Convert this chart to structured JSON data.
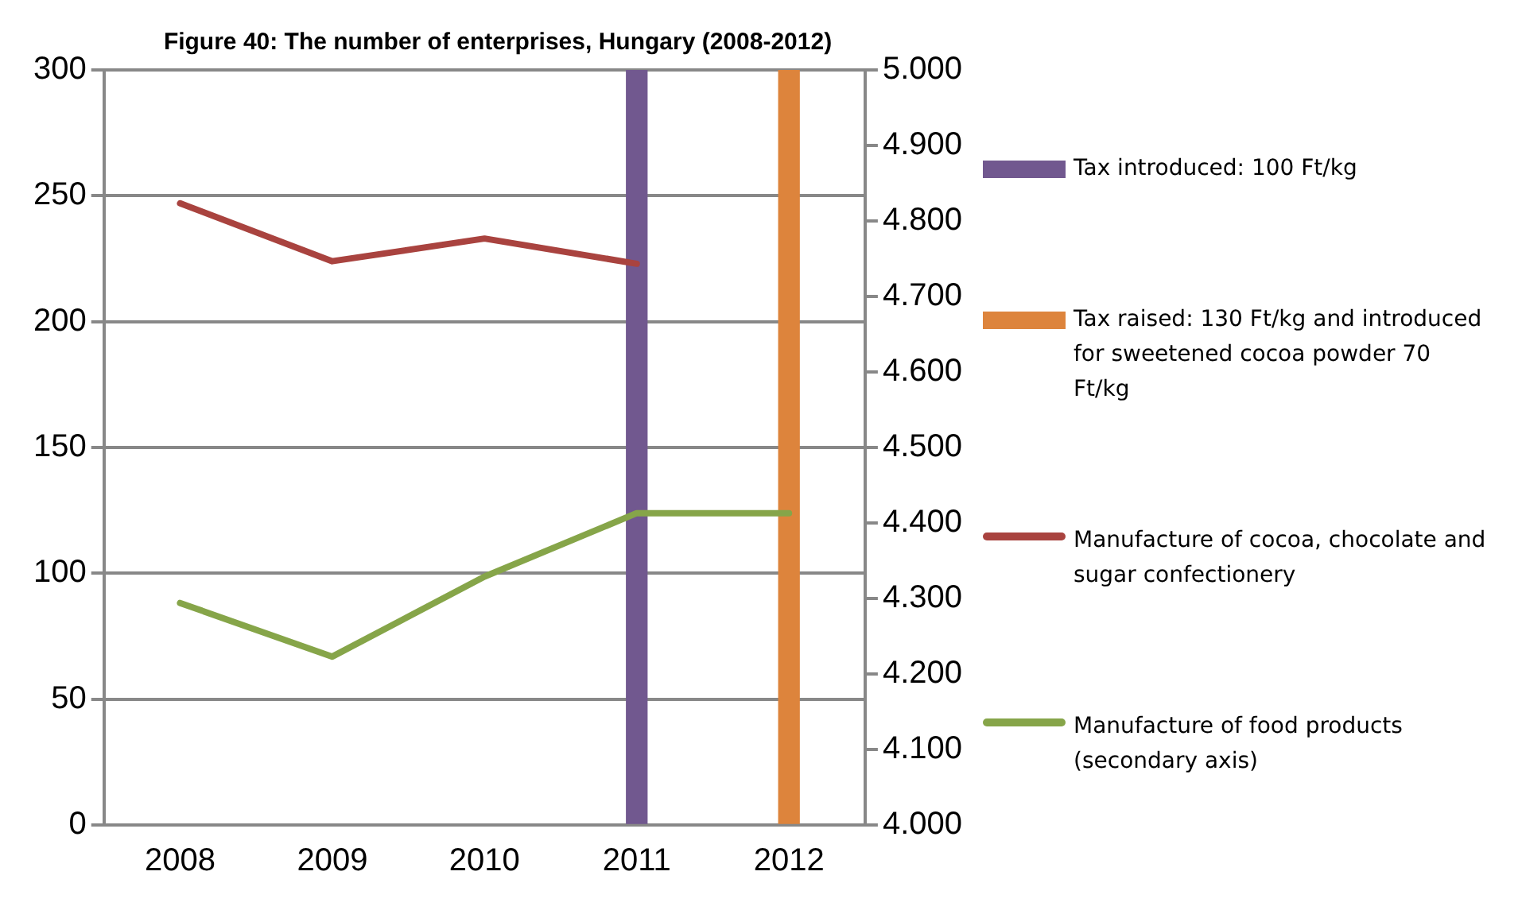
{
  "chart_data": {
    "type": "line",
    "title": "Figure 40: The number of enterprises, Hungary (2008-2012)",
    "categories": [
      "2008",
      "2009",
      "2010",
      "2011",
      "2012"
    ],
    "series": [
      {
        "name": "Tax introduced: 100 Ft/kg",
        "type": "bar",
        "color": "#71588f",
        "values": [
          null,
          null,
          null,
          300,
          null
        ]
      },
      {
        "name": "Tax raised: 130 Ft/kg and introduced for sweetened cocoa powder 70 Ft/kg",
        "type": "bar",
        "color": "#dd843c",
        "values": [
          null,
          null,
          null,
          null,
          300
        ]
      },
      {
        "name": "Manufacture of cocoa, chocolate and sugar confectionery",
        "color": "#a9433f",
        "values": [
          247,
          224,
          233,
          223,
          null
        ]
      },
      {
        "name": "Manufacture of food products (secondary axis)",
        "color": "#86a549",
        "axis": "y2",
        "values": [
          4294,
          4223,
          4329,
          4413,
          4413
        ]
      }
    ],
    "ylim": [
      0,
      300
    ],
    "yticks": [
      0,
      50,
      100,
      150,
      200,
      250,
      300
    ],
    "y2lim": [
      4000,
      5000
    ],
    "y2ticks": [
      {
        "value": 4000,
        "label": "4.000"
      },
      {
        "value": 4100,
        "label": "4.100"
      },
      {
        "value": 4200,
        "label": "4.200"
      },
      {
        "value": 4300,
        "label": "4.300"
      },
      {
        "value": 4400,
        "label": "4.400"
      },
      {
        "value": 4500,
        "label": "4.500"
      },
      {
        "value": 4600,
        "label": "4.600"
      },
      {
        "value": 4700,
        "label": "4.700"
      },
      {
        "value": 4800,
        "label": "4.800"
      },
      {
        "value": 4900,
        "label": "4.900"
      },
      {
        "value": 5000,
        "label": "5.000"
      }
    ],
    "grid": "y",
    "legend": "right"
  }
}
